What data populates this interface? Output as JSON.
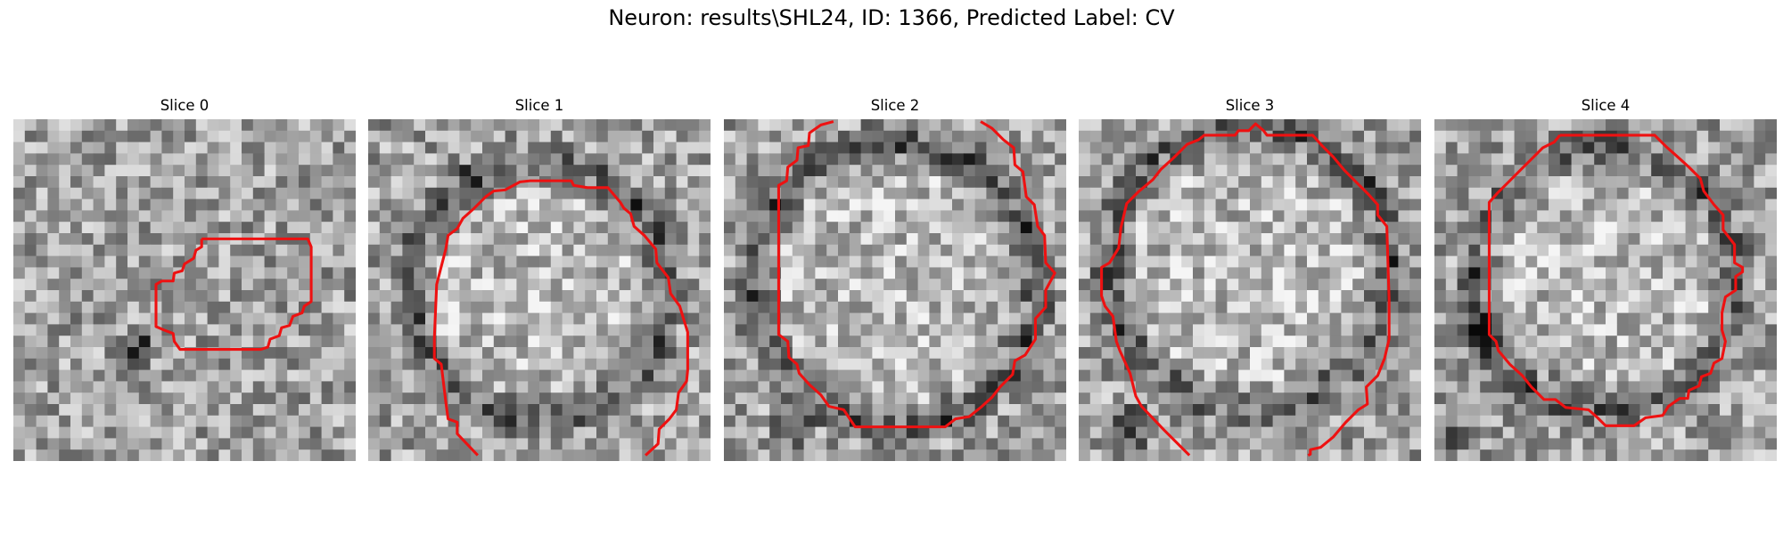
{
  "figure": {
    "title": "Neuron: results\\SHL24, ID: 1366, Predicted Label: CV"
  },
  "panels": [
    {
      "title": "Slice 0"
    },
    {
      "title": "Slice 1"
    },
    {
      "title": "Slice 2"
    },
    {
      "title": "Slice 3"
    },
    {
      "title": "Slice 4"
    }
  ],
  "colors": {
    "contour": "#ee1111",
    "background": "#ffffff"
  }
}
